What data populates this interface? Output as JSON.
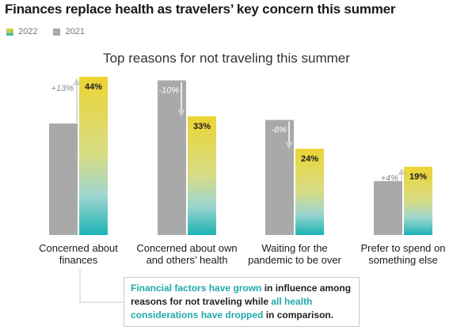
{
  "header": {
    "title": "Finances replace health as travelers’ key concern this summer",
    "legend": [
      {
        "label": "2022",
        "color": "#1fb2b3"
      },
      {
        "label": "2021",
        "color": "#a9a9a9"
      }
    ]
  },
  "chart_data": {
    "type": "bar",
    "title": "Top reasons for not traveling this summer",
    "categories": [
      [
        "Concerned about",
        "finances"
      ],
      [
        "Concerned about own",
        "and others’ health"
      ],
      [
        "Waiting for the",
        "pandemic to be over"
      ],
      [
        "Prefer to spend on",
        "something else"
      ]
    ],
    "series": [
      {
        "name": "2021",
        "values": [
          31,
          43,
          32,
          15
        ]
      },
      {
        "name": "2022",
        "values": [
          44,
          33,
          24,
          19
        ]
      }
    ],
    "data_labels_2022": [
      "44%",
      "33%",
      "24%",
      "19%"
    ],
    "change_labels": [
      "+13%",
      "-10%",
      "-8%",
      "+4%"
    ],
    "ylim": [
      0,
      44
    ],
    "grid": false,
    "colors": {
      "y2021": "#a9a9a9",
      "y2022_top": "#ecd433",
      "y2022_bottom": "#1db3b5"
    }
  },
  "note": {
    "part1": "Financial factors have grown",
    "part2": " in influence among reasons for not traveling while ",
    "part3": "all health considerations have dropped",
    "part4": " in comparison."
  }
}
